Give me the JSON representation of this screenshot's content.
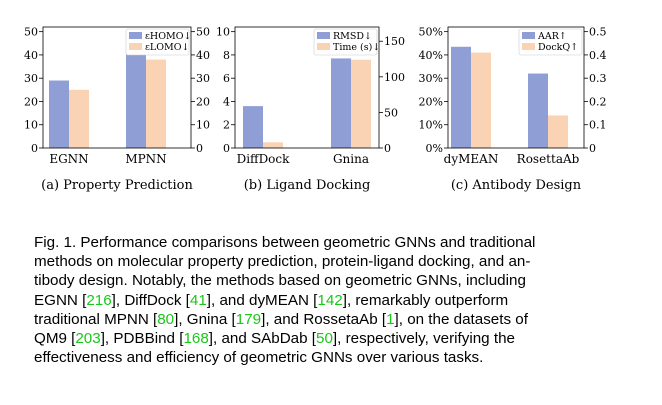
{
  "chart_data": [
    {
      "type": "bar",
      "subcaption": "(a) Property Prediction",
      "categories": [
        "EGNN",
        "MPNN"
      ],
      "series": [
        {
          "name": "εHOMO↓",
          "axis": "left",
          "color": "#8f9fd6",
          "values": [
            29,
            43
          ]
        },
        {
          "name": "εLOMO↓",
          "axis": "right",
          "color": "#fad3b4",
          "values": [
            25,
            38
          ]
        }
      ],
      "ylim_left": [
        0,
        52
      ],
      "yticks_left": [
        0,
        10,
        20,
        30,
        40,
        50
      ],
      "ylim_right": [
        0,
        52
      ],
      "yticks_right": [
        0,
        10,
        20,
        30,
        40,
        50
      ],
      "legend": "top-right"
    },
    {
      "type": "bar",
      "subcaption": "(b) Ligand Docking",
      "categories": [
        "DiffDock",
        "Gnina"
      ],
      "series": [
        {
          "name": "RMSD↓",
          "axis": "left",
          "color": "#8f9fd6",
          "values": [
            3.6,
            7.7
          ]
        },
        {
          "name": "Time (s)↓",
          "axis": "right",
          "color": "#fad3b4",
          "values": [
            8,
            124
          ]
        }
      ],
      "ylim_left": [
        0,
        10.4
      ],
      "yticks_left": [
        0,
        2,
        4,
        6,
        8,
        10
      ],
      "ylim_right": [
        0,
        170
      ],
      "yticks_right": [
        0,
        50,
        100,
        150
      ],
      "legend": "top-right"
    },
    {
      "type": "bar",
      "subcaption": "(c) Antibody Design",
      "categories": [
        "dyMEAN",
        "RosettaAb"
      ],
      "series": [
        {
          "name": "AAR↑",
          "axis": "left",
          "color": "#8f9fd6",
          "values": [
            43.5,
            32
          ]
        },
        {
          "name": "DockQ↑",
          "axis": "right",
          "color": "#fad3b4",
          "values": [
            0.41,
            0.14
          ]
        }
      ],
      "ylim_left": [
        0,
        52
      ],
      "yticks_left": [
        0,
        10,
        20,
        30,
        40,
        50
      ],
      "tickfmt_left": "%",
      "ylim_right": [
        0,
        0.52
      ],
      "yticks_right": [
        0,
        0.1,
        0.2,
        0.3,
        0.4,
        0.5
      ],
      "legend": "top-right"
    }
  ],
  "caption": [
    {
      "t": "Fig. 1. Performance comparisons between geometric GNNs and traditional"
    },
    {
      "t": "methods on molecular property prediction, protein-ligand docking, and an-"
    },
    {
      "t": "tibody design. Notably, the methods based on geometric GNNs, including"
    },
    {
      "t": "EGNN [",
      "ref": "216",
      "t2": "], DiffDock [",
      "ref2": "41",
      "t3": "], and dyMEAN [",
      "ref3": "142",
      "t4": "], remarkably outperform"
    },
    {
      "t": "traditional MPNN [",
      "ref": "80",
      "t2": "], Gnina [",
      "ref2": "179",
      "t3": "], and RossetaAb [",
      "ref3": "1",
      "t4": "], on the datasets of"
    },
    {
      "t": "QM9 [",
      "ref": "203",
      "t2": "], PDBBind [",
      "ref2": "168",
      "t3": "], and SAbDab [",
      "ref3": "50",
      "t4": "], respectively, verifying the"
    },
    {
      "t": "effectiveness and efficiency of geometric GNNs over various tasks."
    }
  ]
}
